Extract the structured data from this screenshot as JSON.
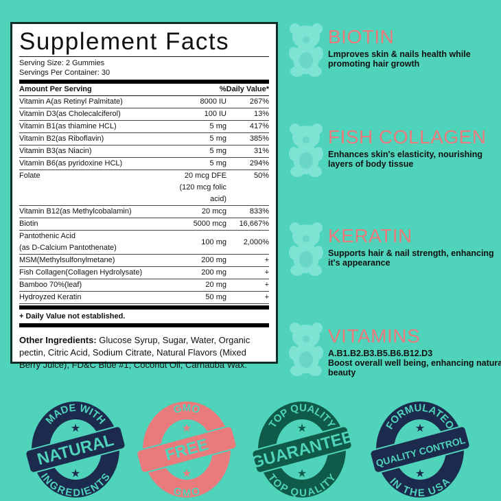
{
  "facts": {
    "title": "Supplement Facts",
    "serving_size": "Serving Size: 2 Gummies",
    "servings_per_container": "Servings Per Container: 30",
    "header_amount": "Amount Per Serving",
    "header_dv": "%Daily Value*",
    "rows": [
      {
        "name": "Vitamin A(as Retinyl Palmitate)",
        "amount": "8000 IU",
        "dv": "267%"
      },
      {
        "name": "Vitamin D3(as Cholecalciferol)",
        "amount": "100 IU",
        "dv": "13%"
      },
      {
        "name": "Vitamin B1(as thiamine HCL)",
        "amount": "5 mg",
        "dv": "417%"
      },
      {
        "name": "Vitamin B2(as Riboflavin)",
        "amount": "5 mg",
        "dv": "385%"
      },
      {
        "name": "Vitamin B3(as Niacin)",
        "amount": "5 mg",
        "dv": "31%"
      },
      {
        "name": "Vitamin B6(as pyridoxine HCL)",
        "amount": "5 mg",
        "dv": "294%"
      },
      {
        "name": "Folate",
        "amount": "20 mcg DFE",
        "amount2": "(120 mcg folic acid)",
        "dv": "50%"
      },
      {
        "name": "Vitamin B12(as Methylcobalamin)",
        "amount": "20 mcg",
        "dv": "833%"
      },
      {
        "name": "Biotin",
        "amount": "5000 mcg",
        "dv": "16,667%"
      },
      {
        "name": "Pantothenic Acid",
        "name2": "(as D-Calcium Pantothenate)",
        "amount": "100 mg",
        "dv": "2,000%"
      },
      {
        "name": "MSM(Methylsulfonylmetane)",
        "amount": "200 mg",
        "dv": "+"
      },
      {
        "name": "Fish Collagen(Collagen Hydrolysate)",
        "amount": "200 mg",
        "dv": "+"
      },
      {
        "name": "Bamboo 70%(leaf)",
        "amount": "20 mg",
        "dv": "+"
      },
      {
        "name": "Hydroyzed Keratin",
        "amount": "50 mg",
        "dv": "+"
      }
    ],
    "note": "+ Daily Value not established.",
    "other_label": "Other Ingredients:",
    "other_text": " Glucose Syrup, Sugar, Water, Organic pectin, Citric Acid, Sodium Citrate, Natural Flavors (Mixed Berry Juice), FD&C Blue #1, Coconut Oil, Carnauba Wax."
  },
  "features": [
    {
      "title": "BIOTIN",
      "desc": "Lmproves skin & nails health while promoting hair growth"
    },
    {
      "title": "FISH COLLAGEN",
      "desc": "Enhances skin's elasticity, nourishing layers of body tissue"
    },
    {
      "title": "KERATIN",
      "desc": "Supports hair & nail strength, enhancing it's appearance"
    },
    {
      "title": "VITAMINS",
      "line1": "A.B1.B2.B3.B5.B6.B12.D3",
      "desc": "Boost overall well being, enhancing natural beauty"
    }
  ],
  "badges": [
    {
      "top": "MADE WITH",
      "band": "NATURAL",
      "bottom": "INGREDIENTS",
      "color": "#1c2a4e"
    },
    {
      "top": "GMO",
      "band": "FREE",
      "bottom": "GMO",
      "color": "#e97b7c"
    },
    {
      "top": "TOP QUALITY",
      "band": "GUARANTEE",
      "bottom": "TOP QUALITY",
      "color": "#0f5a48"
    },
    {
      "top": "FORMULATEO",
      "band": "QUALITY CONTROL",
      "bottom": "IN THE USA",
      "color": "#1c2a4e"
    }
  ],
  "colors": {
    "background": "#4fd3ba",
    "accent": "#ea7a7c",
    "bear": "#7fe3d4"
  }
}
